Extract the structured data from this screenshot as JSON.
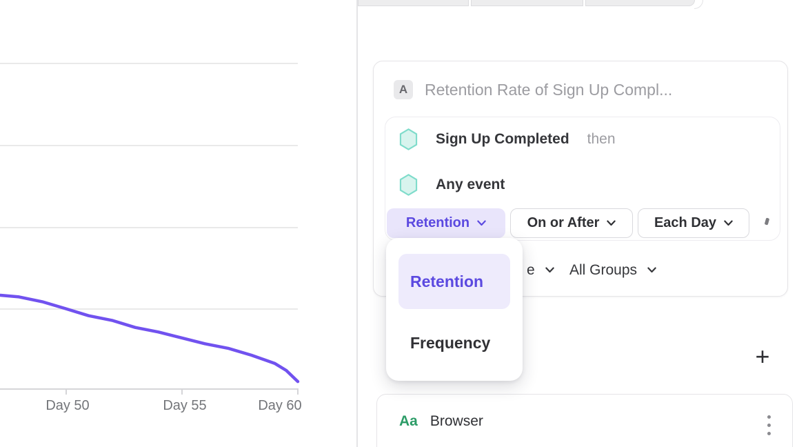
{
  "colors": {
    "accent_purple": "#5b49e0",
    "accent_purple_bg": "#e9e5fb",
    "dropdown_highlight_bg": "#eeebfc",
    "chart_line": "#7152ef",
    "teal_fill": "#d8f4ee",
    "teal_border": "#7fdccb",
    "string_green": "#2c9c67",
    "text_dark": "#2f3034",
    "text_grey": "#9c9ca1",
    "grid_grey": "#e9e9e9"
  },
  "chart_data": {
    "type": "line",
    "title": "",
    "xlabel": "",
    "ylabel": "",
    "series": [
      {
        "name": "Retention",
        "x": [
          47.2,
          48,
          49,
          50,
          51,
          52,
          53,
          54,
          55,
          56,
          57,
          58,
          59,
          59.5,
          60
        ],
        "values": [
          28.6,
          28.1,
          26.6,
          24.5,
          22.3,
          20.9,
          18.7,
          17.3,
          15.5,
          13.7,
          12.3,
          10.2,
          7.7,
          5.5,
          2.1
        ]
      }
    ],
    "x_tick_labels": [
      "Day 50",
      "Day 55",
      "Day 60"
    ],
    "x_tick_days": [
      50,
      55,
      60
    ],
    "xlim": [
      47.2,
      60
    ],
    "ylim": [
      0,
      100
    ],
    "grid": "horizontal",
    "y_gridline_values": [
      100,
      75,
      50,
      25
    ],
    "legend": "none"
  },
  "query_builder": {
    "badge": "A",
    "name_placeholder": "Retention Rate of Sign Up Compl...",
    "events": [
      {
        "label": "Sign Up Completed",
        "connector": "then"
      },
      {
        "label": "Any event",
        "connector": ""
      }
    ],
    "measure_dropdown": "Retention",
    "criteria_dropdown": "On or After",
    "interval_dropdown": "Each Day",
    "clipped_dropdown_partial": "e",
    "group_by_dropdown": "All Groups"
  },
  "measure_menu": {
    "items": [
      {
        "label": "Retention",
        "selected": true
      },
      {
        "label": "Frequency",
        "selected": false
      }
    ]
  },
  "breakdown": {
    "type_badge": "Aa",
    "property": "Browser"
  },
  "icons": {
    "plus_icon": "+",
    "kebab_icon": "vertical-three-dots",
    "chevron_down_icon": "v-chevron",
    "event_hexagon_icon": "hexagon"
  }
}
